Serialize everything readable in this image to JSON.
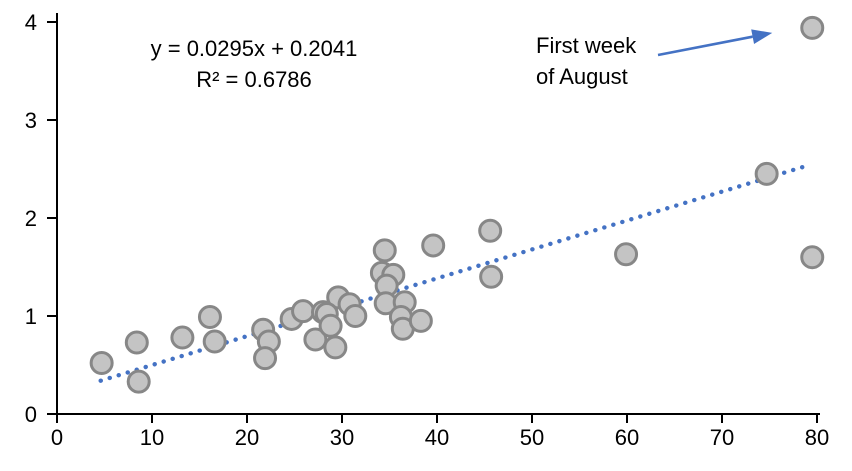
{
  "figure": {
    "background": "#ffffff"
  },
  "chart_data": {
    "type": "scatter",
    "title": "",
    "xlabel": "",
    "ylabel": "",
    "grid": false,
    "legend": "none",
    "x_axis": {
      "min": 0,
      "max": 80,
      "tick_step": 10,
      "tick_labels": [
        "0",
        "10",
        "20",
        "30",
        "40",
        "50",
        "60",
        "70",
        "80"
      ]
    },
    "y_axis": {
      "min": 0,
      "max": 4,
      "tick_step": 1,
      "tick_labels": [
        "0",
        "1",
        "2",
        "3",
        "4"
      ]
    },
    "points": [
      {
        "x": 4.7,
        "y": 0.52
      },
      {
        "x": 8.4,
        "y": 0.73
      },
      {
        "x": 8.6,
        "y": 0.33
      },
      {
        "x": 13.2,
        "y": 0.78
      },
      {
        "x": 16.1,
        "y": 0.99
      },
      {
        "x": 16.6,
        "y": 0.74
      },
      {
        "x": 21.7,
        "y": 0.86
      },
      {
        "x": 22.3,
        "y": 0.74
      },
      {
        "x": 21.9,
        "y": 0.57
      },
      {
        "x": 24.7,
        "y": 0.97
      },
      {
        "x": 25.9,
        "y": 1.05
      },
      {
        "x": 28.0,
        "y": 1.04
      },
      {
        "x": 27.2,
        "y": 0.76
      },
      {
        "x": 29.3,
        "y": 0.68
      },
      {
        "x": 29.6,
        "y": 1.19
      },
      {
        "x": 30.8,
        "y": 1.12
      },
      {
        "x": 28.4,
        "y": 1.02
      },
      {
        "x": 31.4,
        "y": 1.0
      },
      {
        "x": 28.8,
        "y": 0.9
      },
      {
        "x": 34.5,
        "y": 1.67
      },
      {
        "x": 34.2,
        "y": 1.44
      },
      {
        "x": 35.4,
        "y": 1.42
      },
      {
        "x": 34.7,
        "y": 1.31
      },
      {
        "x": 34.6,
        "y": 1.13
      },
      {
        "x": 36.6,
        "y": 1.14
      },
      {
        "x": 36.2,
        "y": 0.99
      },
      {
        "x": 36.4,
        "y": 0.87
      },
      {
        "x": 38.3,
        "y": 0.95
      },
      {
        "x": 39.6,
        "y": 1.72
      },
      {
        "x": 45.6,
        "y": 1.87
      },
      {
        "x": 45.7,
        "y": 1.4
      },
      {
        "x": 59.9,
        "y": 1.63
      },
      {
        "x": 74.7,
        "y": 2.45
      },
      {
        "x": 79.5,
        "y": 3.94
      },
      {
        "x": 79.5,
        "y": 1.6
      }
    ],
    "trendline": {
      "type": "linear-dotted",
      "slope": 0.0295,
      "intercept": 0.2041,
      "r_squared": 0.6786,
      "x_start": 4.6,
      "x_end": 79.0,
      "equation_label": "y = 0.0295x + 0.2041",
      "r2_label": "R² = 0.6786"
    },
    "annotation": {
      "lines": [
        "First week",
        "of August"
      ],
      "target_point": {
        "x": 79.5,
        "y": 3.94
      }
    },
    "colors": {
      "marker_fill": "#c4c4c4",
      "marker_stroke": "#878787",
      "trendline": "#4472c4",
      "arrow": "#4472c4",
      "axis": "#000000",
      "text": "#000000"
    }
  }
}
